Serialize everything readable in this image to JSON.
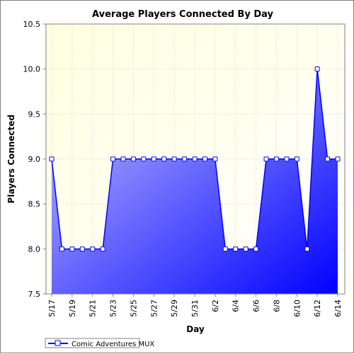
{
  "chart_data": {
    "type": "area",
    "title": "Average Players Connected By Day",
    "xlabel": "Day",
    "ylabel": "Players Connected",
    "ylim": [
      7.5,
      10.5
    ],
    "y_ticks": [
      "7.5",
      "8.0",
      "8.5",
      "9.0",
      "9.5",
      "10.0",
      "10.5"
    ],
    "x_ticks": [
      "5/17",
      "5/19",
      "5/21",
      "5/23",
      "5/25",
      "5/27",
      "5/29",
      "5/31",
      "6/2",
      "6/4",
      "6/6",
      "6/8",
      "6/10",
      "6/12",
      "6/14"
    ],
    "grid": true,
    "legend_position": "bottom-left",
    "series": [
      {
        "name": "Comic Adventures MUX",
        "color": "#0000ff",
        "x": [
          "5/17",
          "5/18",
          "5/19",
          "5/20",
          "5/21",
          "5/22",
          "5/23",
          "5/24",
          "5/25",
          "5/26",
          "5/27",
          "5/28",
          "5/29",
          "5/30",
          "5/31",
          "6/1",
          "6/2",
          "6/3",
          "6/4",
          "6/5",
          "6/6",
          "6/7",
          "6/8",
          "6/9",
          "6/10",
          "6/11",
          "6/12",
          "6/13",
          "6/14"
        ],
        "values": [
          9.0,
          8.0,
          8.0,
          8.0,
          8.0,
          8.0,
          9.0,
          9.0,
          9.0,
          9.0,
          9.0,
          9.0,
          9.0,
          9.0,
          9.0,
          9.0,
          9.0,
          8.0,
          8.0,
          8.0,
          8.0,
          9.0,
          9.0,
          9.0,
          9.0,
          8.0,
          10.0,
          9.0,
          9.0
        ]
      }
    ]
  }
}
